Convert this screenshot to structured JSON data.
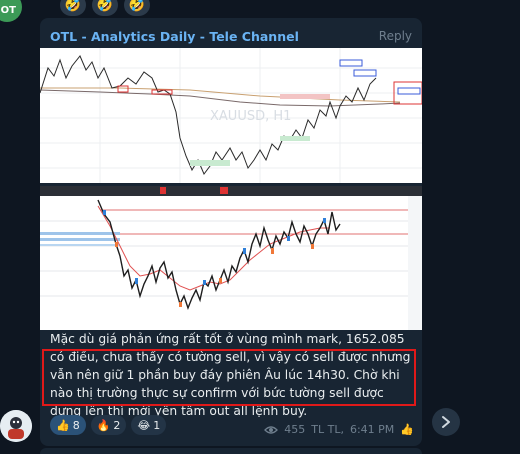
{
  "previous_message": {
    "avatar_initials": "OT",
    "reactions": [
      "🤣",
      "🤣",
      "🤣"
    ]
  },
  "message": {
    "channel_name": "OTL - Analytics Daily - Tele Channel",
    "reply_label": "Reply",
    "text": "Mặc dù giá phản ứng rất tốt ở vùng mình mark, 1652.085 có điều, chưa thấy có tường sell, vì vậy có sell được nhưng vẫn nên giữ 1 phần buy đáy phiên Âu lúc 14h30. Chờ khi nào thị trường thực sự confirm với bức tường sell được dựng lên thì mới yên tâm out all lệnh buy.",
    "reactions": [
      {
        "emoji": "👍",
        "count": "8"
      },
      {
        "emoji": "🔥",
        "count": "2"
      },
      {
        "emoji": "😂",
        "count": "1"
      }
    ],
    "views": "455",
    "author_sign": "TL TL,",
    "time": "6:41 PM",
    "chart1_watermark": "XAUUSD, H1"
  },
  "colors": {
    "background": "#0e1621",
    "bubble": "#182533",
    "accent": "#6ab3f3",
    "highlight_border": "#e01919"
  },
  "icons": {
    "views": "eye-icon",
    "forward": "forward-arrow-icon",
    "status": "thumbs-up-icon"
  }
}
